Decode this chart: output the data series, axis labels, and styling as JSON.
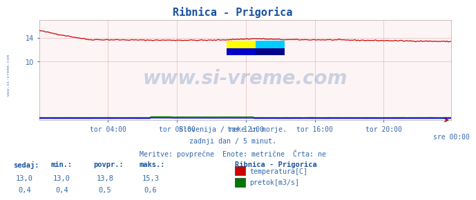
{
  "title": "Ribnica - Prigorica",
  "title_color": "#1a52a0",
  "bg_color": "#ffffff",
  "plot_bg_color": "#ffffff",
  "grid_color": "#e8b8b8",
  "xlabel_ticks": [
    "tor 04:00",
    "tor 08:00",
    "tor 12:00",
    "tor 16:00",
    "tor 20:00",
    "sre 00:00"
  ],
  "ylabel_ticks": [
    10,
    14
  ],
  "ylim": [
    0,
    17.0
  ],
  "xlim": [
    0,
    287
  ],
  "temp_color": "#cc0000",
  "pretok_color": "#007700",
  "visina_color": "#0000cc",
  "watermark_text": "www.si-vreme.com",
  "watermark_color": "#1a52a0",
  "sidebar_text": "www.si-vreme.com",
  "sidebar_color": "#1a52a0",
  "info_line1": "Slovenija / reke in morje.",
  "info_line2": "zadnji dan / 5 minut.",
  "info_line3": "Meritve: povprečne  Enote: metrične  Črta: ne",
  "info_color": "#3366aa",
  "legend_title": "Ribnica - Prigorica",
  "legend_color": "#1a52a0",
  "legend_entries": [
    "temperatura[C]",
    "pretok[m3/s]"
  ],
  "legend_colors": [
    "#cc0000",
    "#007700"
  ],
  "stats_headers": [
    "sedaj:",
    "min.:",
    "povpr.:",
    "maks.:"
  ],
  "stats_temp": [
    13.0,
    13.0,
    13.8,
    15.3
  ],
  "stats_pretok": [
    0.4,
    0.4,
    0.5,
    0.6
  ],
  "stats_color": "#1a52a0",
  "n_points": 288
}
